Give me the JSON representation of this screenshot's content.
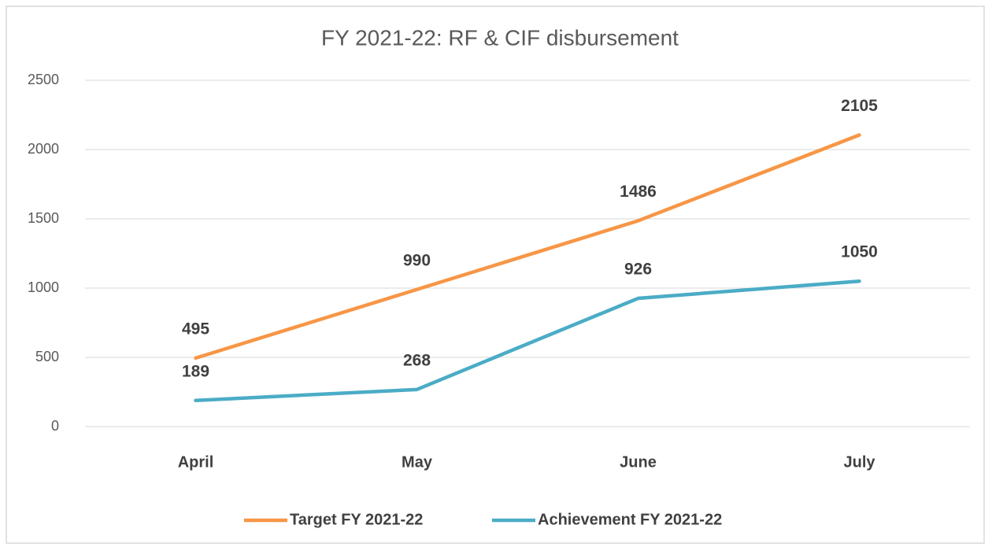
{
  "chart_data": {
    "type": "line",
    "title": "FY 2021-22: RF & CIF disbursement",
    "categories": [
      "April",
      "May",
      "June",
      "July"
    ],
    "series": [
      {
        "name": "Target FY 2021-22",
        "color": "#f79646",
        "values": [
          495,
          990,
          1486,
          2105
        ]
      },
      {
        "name": "Achievement FY 2021-22",
        "color": "#4bacc6",
        "values": [
          189,
          268,
          926,
          1050
        ]
      }
    ],
    "ylim": [
      0,
      2500
    ],
    "yticks": [
      0,
      500,
      1000,
      1500,
      2000,
      2500
    ],
    "grid": true,
    "legend": "bottom"
  }
}
